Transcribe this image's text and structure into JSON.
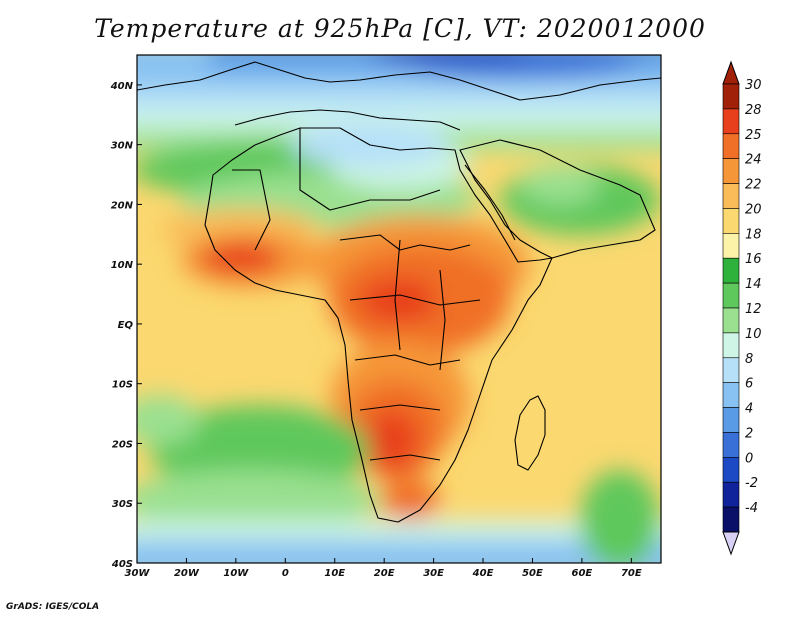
{
  "title": "Temperature at 925hPa [C], VT: 2020012000",
  "credit": "GrADS: IGES/COLA",
  "map": {
    "lon_range": [
      -30,
      76
    ],
    "lat_range": [
      -40,
      45
    ],
    "lon_ticks": [
      {
        "value": -30,
        "label": "30W"
      },
      {
        "value": -20,
        "label": "20W"
      },
      {
        "value": -10,
        "label": "10W"
      },
      {
        "value": 0,
        "label": "0"
      },
      {
        "value": 10,
        "label": "10E"
      },
      {
        "value": 20,
        "label": "20E"
      },
      {
        "value": 30,
        "label": "30E"
      },
      {
        "value": 40,
        "label": "40E"
      },
      {
        "value": 50,
        "label": "50E"
      },
      {
        "value": 60,
        "label": "60E"
      },
      {
        "value": 70,
        "label": "70E"
      }
    ],
    "lat_ticks": [
      {
        "value": 40,
        "label": "40N"
      },
      {
        "value": 30,
        "label": "30N"
      },
      {
        "value": 20,
        "label": "20N"
      },
      {
        "value": 10,
        "label": "10N"
      },
      {
        "value": 0,
        "label": "EQ"
      },
      {
        "value": -10,
        "label": "10S"
      },
      {
        "value": -20,
        "label": "20S"
      },
      {
        "value": -30,
        "label": "30S"
      },
      {
        "value": -40,
        "label": "40S"
      }
    ]
  },
  "colorbar": {
    "labels": [
      "30",
      "28",
      "25",
      "24",
      "22",
      "20",
      "18",
      "16",
      "14",
      "12",
      "10",
      "8",
      "6",
      "4",
      "2",
      "0",
      "-2",
      "-4"
    ],
    "colors": [
      "#a02008",
      "#e8401c",
      "#f07028",
      "#f59638",
      "#f9bc58",
      "#fbd870",
      "#fdf3a8",
      "#2eb23c",
      "#5ec85c",
      "#9ae090",
      "#cef5e6",
      "#b6e0f8",
      "#88c2f2",
      "#5a9be6",
      "#3870d8",
      "#1c49c4",
      "#10239a",
      "#0a1068"
    ],
    "bottom_arrow_color": "#d8d0f5",
    "top_arrow_color": "#a02008"
  }
}
